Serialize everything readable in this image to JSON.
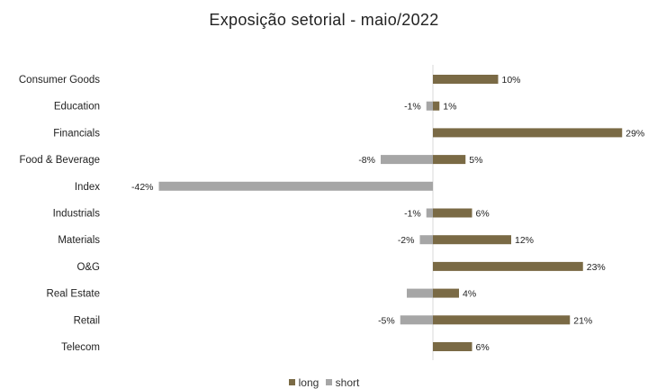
{
  "chart_data": {
    "type": "bar",
    "orientation": "horizontal",
    "title": "Exposição setorial - maio/2022",
    "categories": [
      "Consumer Goods",
      "Education",
      "Financials",
      "Food & Beverage",
      "Index",
      "Industrials",
      "Materials",
      "O&G",
      "Real Estate",
      "Retail",
      "Telecom"
    ],
    "series": [
      {
        "name": "long",
        "color": "#7a6a45",
        "values": [
          10,
          1,
          29,
          5,
          0,
          6,
          12,
          23,
          4,
          21,
          6
        ],
        "labels": [
          "10%",
          "1%",
          "29%",
          "5%",
          "",
          "6%",
          "12%",
          "23%",
          "4%",
          "21%",
          "6%"
        ]
      },
      {
        "name": "short",
        "color": "#a6a6a6",
        "values": [
          0,
          -1,
          0,
          -8,
          -42,
          -1,
          -2,
          0,
          -4,
          -5,
          0
        ],
        "labels": [
          "",
          "-1%",
          "",
          "-8%",
          "-42%",
          "-1%",
          "-2%",
          "",
          "",
          "-5%",
          ""
        ]
      }
    ],
    "xlim": [
      -42,
      29
    ],
    "grid": false,
    "legend_position": "bottom"
  }
}
